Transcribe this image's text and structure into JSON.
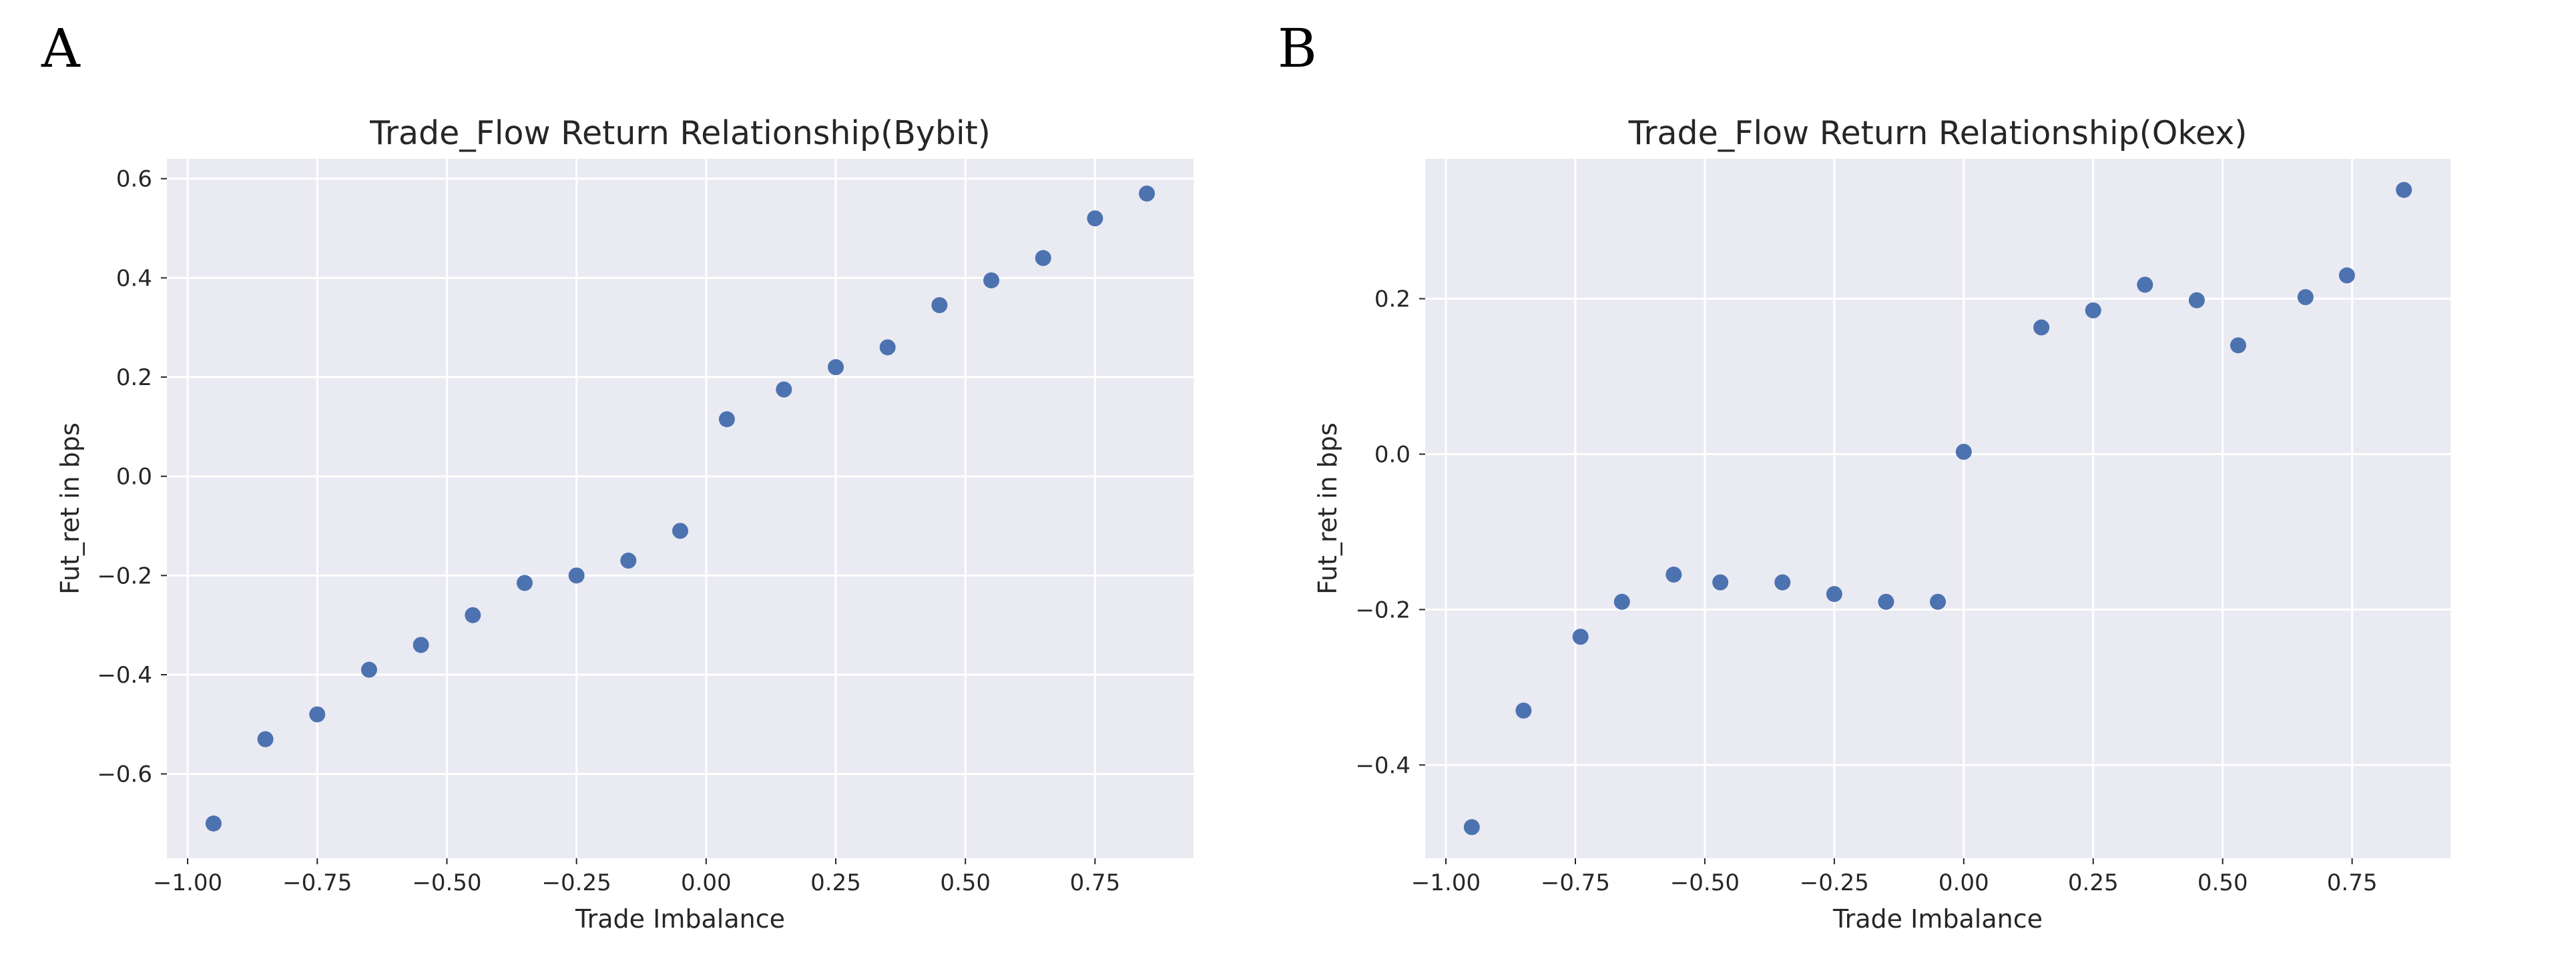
{
  "panels": {
    "a": {
      "letter": "A"
    },
    "b": {
      "letter": "B"
    }
  },
  "colors": {
    "point": "#4C72B0",
    "background": "#EAEAF2",
    "grid": "#FFFFFF"
  },
  "chart_data": [
    {
      "type": "scatter",
      "title": "Trade_Flow Return Relationship(Bybit)",
      "xlabel": "Trade Imbalance",
      "ylabel": "Fut_ret in bps",
      "xlim": [
        -1.04,
        0.94
      ],
      "ylim": [
        -0.77,
        0.64
      ],
      "xticks": [
        -1.0,
        -0.75,
        -0.5,
        -0.25,
        0.0,
        0.25,
        0.5,
        0.75
      ],
      "xtick_labels": [
        "−1.00",
        "−0.75",
        "−0.50",
        "−0.25",
        "0.00",
        "0.25",
        "0.50",
        "0.75"
      ],
      "yticks": [
        -0.6,
        -0.4,
        -0.2,
        0.0,
        0.2,
        0.4,
        0.6
      ],
      "ytick_labels": [
        "−0.6",
        "−0.4",
        "−0.2",
        "0.0",
        "0.2",
        "0.4",
        "0.6"
      ],
      "grid": true,
      "x": [
        -0.95,
        -0.85,
        -0.75,
        -0.65,
        -0.55,
        -0.45,
        -0.35,
        -0.25,
        -0.15,
        -0.05,
        0.04,
        0.15,
        0.25,
        0.35,
        0.45,
        0.55,
        0.65,
        0.75,
        0.85
      ],
      "y": [
        -0.7,
        -0.53,
        -0.48,
        -0.39,
        -0.34,
        -0.28,
        -0.215,
        -0.2,
        -0.17,
        -0.11,
        0.115,
        0.175,
        0.22,
        0.26,
        0.345,
        0.395,
        0.44,
        0.52,
        0.57
      ]
    },
    {
      "type": "scatter",
      "title": "Trade_Flow Return Relationship(Okex)",
      "xlabel": "Trade Imbalance",
      "ylabel": "Fut_ret in bps",
      "xlim": [
        -1.04,
        0.94
      ],
      "ylim": [
        -0.52,
        0.38
      ],
      "xticks": [
        -1.0,
        -0.75,
        -0.5,
        -0.25,
        0.0,
        0.25,
        0.5,
        0.75
      ],
      "xtick_labels": [
        "−1.00",
        "−0.75",
        "−0.50",
        "−0.25",
        "0.00",
        "0.25",
        "0.50",
        "0.75"
      ],
      "yticks": [
        -0.4,
        -0.2,
        0.0,
        0.2
      ],
      "ytick_labels": [
        "−0.4",
        "−0.2",
        "0.0",
        "0.2"
      ],
      "grid": true,
      "x": [
        -0.95,
        -0.85,
        -0.74,
        -0.66,
        -0.56,
        -0.47,
        -0.35,
        -0.25,
        -0.15,
        -0.05,
        0.0,
        0.15,
        0.25,
        0.35,
        0.45,
        0.53,
        0.66,
        0.74,
        0.85
      ],
      "y": [
        -0.48,
        -0.33,
        -0.235,
        -0.19,
        -0.155,
        -0.165,
        -0.165,
        -0.18,
        -0.19,
        -0.19,
        0.003,
        0.163,
        0.185,
        0.218,
        0.198,
        0.14,
        0.202,
        0.23,
        0.34
      ]
    }
  ]
}
